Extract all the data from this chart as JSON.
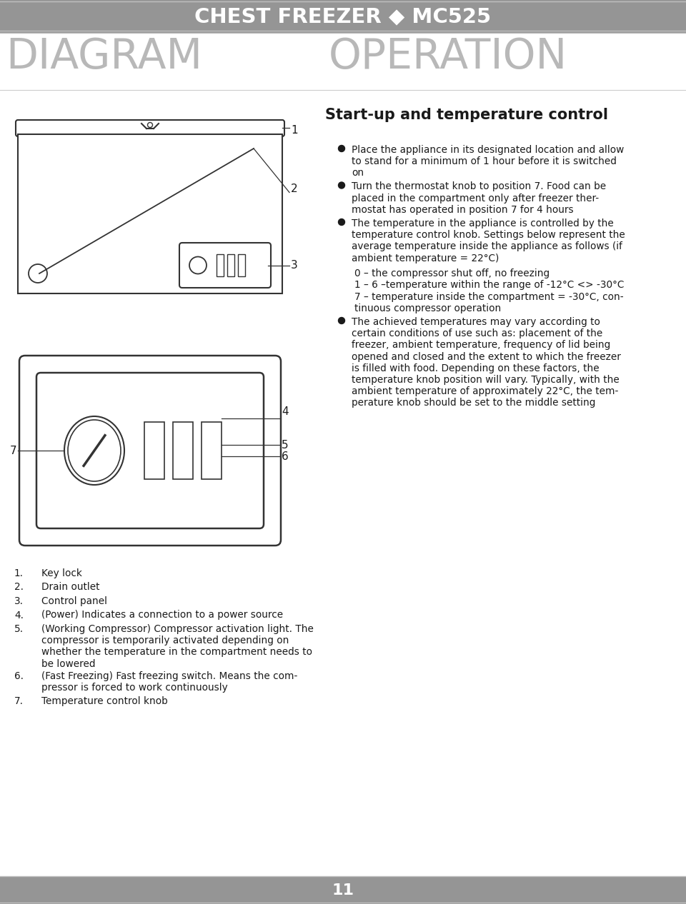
{
  "header_bg_color": "#959595",
  "header_text": "CHEST FREEZER ◆ MC525",
  "header_text_color": "#ffffff",
  "header_font_size": 21,
  "section_left": "DIAGRAM",
  "section_right": "OPERATION",
  "section_font_size": 42,
  "section_color": "#b8b8b8",
  "subtitle": "Start-up and temperature control",
  "subtitle_font_size": 15,
  "bullet_font_size": 9.8,
  "bullets": [
    "Place the appliance in its designated location and allow\nto stand for a minimum of 1 hour before it is switched\non",
    "Turn the thermostat knob to position 7. Food can be\nplaced in the compartment only after freezer ther-\nmostat has operated in position 7 for 4 hours",
    "The temperature in the appliance is controlled by the\ntemperature control knob. Settings below represent the\naverage temperature inside the appliance as follows (if\nambient temperature = 22°C)"
  ],
  "indent_lines": [
    "0 – the compressor shut off, no freezing",
    "1 – 6 –temperature within the range of -12°C <> -30°C",
    "7 – temperature inside the compartment = -30°C, con-\ntinuous compressor operation"
  ],
  "bullet_last": "The achieved temperatures may vary according to\ncertain conditions of use such as: placement of the\nfreezer, ambient temperature, frequency of lid being\nopened and closed and the extent to which the freezer\nis filled with food. Depending on these factors, the\ntemperature knob position will vary. Typically, with the\nambient temperature of approximately 22°C, the tem-\nperature knob should be set to the middle setting",
  "numbered_items_raw": [
    {
      "num": "1.",
      "text": "Key lock"
    },
    {
      "num": "2.",
      "text": "Drain outlet"
    },
    {
      "num": "3.",
      "text": "Control panel"
    },
    {
      "num": "4.",
      "text": "(Power) Indicates a connection to a power source"
    },
    {
      "num": "5.",
      "text": "(Working Compressor) Compressor activation light. The\ncompressor is temporarily activated depending on\nwhether the temperature in the compartment needs to\nbe lowered"
    },
    {
      "num": "6.",
      "text": "(Fast Freezing) Fast freezing switch. Means the com-\npressor is forced to work continuously"
    },
    {
      "num": "7.",
      "text": "Temperature control knob"
    }
  ],
  "footer_bg": "#959595",
  "footer_text": "11",
  "footer_text_color": "#ffffff",
  "bg_color": "#ffffff",
  "text_color": "#1a1a1a",
  "line_color": "#333333"
}
